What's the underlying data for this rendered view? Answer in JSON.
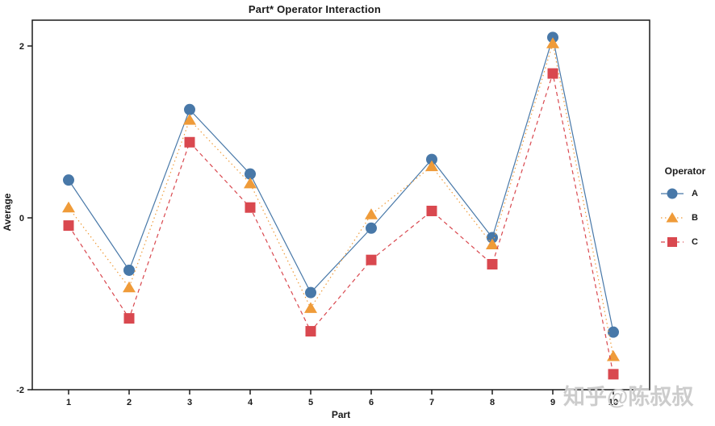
{
  "watermark": "知乎@陈叔叔",
  "chart_data": {
    "type": "line",
    "title": "Part* Operator Interaction",
    "xlabel": "Part",
    "ylabel": "Average",
    "x": [
      1,
      2,
      3,
      4,
      5,
      6,
      7,
      8,
      9,
      10
    ],
    "yticks": [
      -2,
      0,
      2
    ],
    "ylim": [
      -2,
      2.3
    ],
    "grid": false,
    "legend_title": "Operator",
    "legend_position": "right",
    "series": [
      {
        "name": "A",
        "marker": "circle",
        "color": "#4878a8",
        "line_style": "solid",
        "values": [
          0.44,
          -0.61,
          1.26,
          0.51,
          -0.87,
          -0.12,
          0.68,
          -0.23,
          2.1,
          -1.33
        ]
      },
      {
        "name": "B",
        "marker": "triangle",
        "color": "#ef9b39",
        "line_style": "dotted",
        "values": [
          0.12,
          -0.81,
          1.14,
          0.4,
          -1.05,
          0.04,
          0.6,
          -0.31,
          2.03,
          -1.61
        ]
      },
      {
        "name": "C",
        "marker": "square",
        "color": "#d9484f",
        "line_style": "dashed",
        "values": [
          -0.09,
          -1.17,
          0.88,
          0.12,
          -1.32,
          -0.49,
          0.08,
          -0.54,
          1.68,
          -1.82
        ]
      }
    ]
  }
}
